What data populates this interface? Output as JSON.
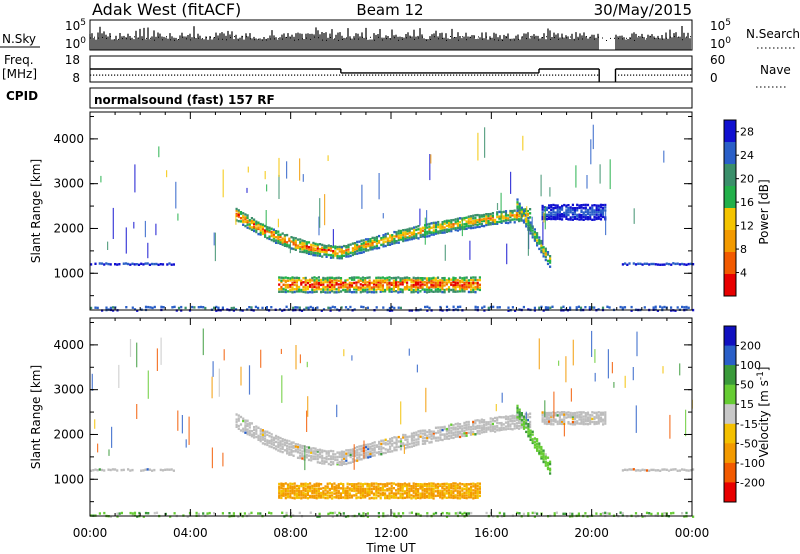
{
  "header": {
    "station": "Adak West (fitACF)",
    "beam": "Beam 12",
    "date": "30/May/2015"
  },
  "strip1": {
    "left_label": "N.Sky",
    "left_top": "10^5",
    "left_bottom": "10^0",
    "right_top": "10^5",
    "right_bottom": "10^0",
    "right_label": "N.Search"
  },
  "strip2": {
    "left_label_1": "Freq.",
    "left_label_2": "[MHz]",
    "left_top": "18",
    "left_bottom": "8",
    "right_top": "60",
    "right_bottom": "0",
    "right_label": "Nave"
  },
  "strip3": {
    "left_label": "CPID",
    "program": "normalsound (fast) 157 RF"
  },
  "colors": {
    "power_scale": [
      "#1010d0",
      "#2a5fc8",
      "#3a8f6a",
      "#22b04a",
      "#f4c400",
      "#f39a00",
      "#f25a00",
      "#e80000"
    ],
    "velocity_scale": [
      "#e80000",
      "#f25a00",
      "#f39a00",
      "#f4c000",
      "#c8c8c8",
      "#66cc33",
      "#3a9a3a",
      "#2a5fc8",
      "#1010c0"
    ],
    "ground_scatter": "#bdbdbd"
  },
  "chart_data": [
    {
      "type": "heatmap",
      "title": "",
      "quantity": "Power",
      "ylabel": "Slant Range [km]",
      "xlabel": "",
      "x_ticks": [
        "00:00",
        "04:00",
        "08:00",
        "12:00",
        "16:00",
        "20:00",
        "00:00"
      ],
      "x_range_hours": [
        0,
        24
      ],
      "y_ticks": [
        "1000",
        "2000",
        "3000",
        "4000"
      ],
      "ylim_km": [
        180,
        4600
      ],
      "colorbar": {
        "label": "Power [dB]",
        "ticks": [
          "4",
          "8",
          "12",
          "16",
          "20",
          "24",
          "28"
        ],
        "range": [
          0,
          30
        ]
      },
      "features": [
        {
          "desc": "band",
          "x": [
            0.0,
            3.3
          ],
          "y_center": 1250,
          "y_halfwidth": 35,
          "peak": 6
        },
        {
          "desc": "band",
          "x": [
            21.2,
            24.0
          ],
          "y_center": 1250,
          "y_halfwidth": 35,
          "peak": 6
        },
        {
          "desc": "arc",
          "x": [
            5.8,
            10.0
          ],
          "y_start": 2350,
          "y_mid": 1550,
          "y_end": 1500,
          "y_halfwidth": 150,
          "peak": 26
        },
        {
          "desc": "arc",
          "x": [
            10.0,
            17.5
          ],
          "y_start": 1500,
          "y_mid": 2150,
          "y_end": 2350,
          "y_halfwidth": 150,
          "peak": 22
        },
        {
          "desc": "patch",
          "x": [
            7.5,
            15.5
          ],
          "y_center": 780,
          "y_halfwidth": 180,
          "peak": 30
        },
        {
          "desc": "slant",
          "x": [
            17.0,
            18.3
          ],
          "y_start": 2550,
          "y_end": 1300,
          "y_halfwidth": 150,
          "peak": 18
        },
        {
          "desc": "patch",
          "x": [
            18.0,
            20.5
          ],
          "y_center": 2400,
          "y_halfwidth": 180,
          "peak": 6
        },
        {
          "desc": "bottom_noise",
          "x": [
            0.0,
            24.0
          ],
          "y_center": 250,
          "y_halfwidth": 60,
          "peak": 8
        }
      ]
    },
    {
      "type": "heatmap",
      "title": "",
      "quantity": "Velocity",
      "ylabel": "Slant Range [km]",
      "xlabel": "Time UT",
      "x_ticks": [
        "00:00",
        "04:00",
        "08:00",
        "12:00",
        "16:00",
        "20:00",
        "00:00"
      ],
      "x_range_hours": [
        0,
        24
      ],
      "y_ticks": [
        "1000",
        "2000",
        "3000",
        "4000"
      ],
      "ylim_km": [
        180,
        4600
      ],
      "colorbar": {
        "label": "Velocity [m s^-1]",
        "ticks": [
          "200",
          "100",
          "50",
          "15",
          "-15",
          "-50",
          "-100",
          "-200"
        ],
        "range": [
          -250,
          250
        ]
      },
      "features": [
        {
          "desc": "band",
          "x": [
            0.0,
            3.3
          ],
          "y_center": 1250,
          "y_halfwidth": 35,
          "value": 0
        },
        {
          "desc": "band",
          "x": [
            21.2,
            24.0
          ],
          "y_center": 1250,
          "y_halfwidth": 35,
          "value": 0
        },
        {
          "desc": "arc",
          "x": [
            5.8,
            10.0
          ],
          "y_start": 2350,
          "y_mid": 1550,
          "y_end": 1500,
          "y_halfwidth": 170,
          "value": 0
        },
        {
          "desc": "arc",
          "x": [
            10.0,
            17.5
          ],
          "y_start": 1500,
          "y_mid": 2150,
          "y_end": 2350,
          "y_halfwidth": 170,
          "value": 0
        },
        {
          "desc": "patch",
          "x": [
            7.5,
            15.5
          ],
          "y_center": 780,
          "y_halfwidth": 180,
          "value": -60
        },
        {
          "desc": "slant",
          "x": [
            17.0,
            18.3
          ],
          "y_start": 2550,
          "y_end": 1300,
          "y_halfwidth": 150,
          "value": 40
        },
        {
          "desc": "patch",
          "x": [
            18.0,
            20.5
          ],
          "y_center": 2400,
          "y_halfwidth": 150,
          "value": 0
        },
        {
          "desc": "bottom_noise",
          "x": [
            0.0,
            24.0
          ],
          "y_center": 250,
          "y_halfwidth": 60,
          "value": 30
        }
      ]
    }
  ]
}
